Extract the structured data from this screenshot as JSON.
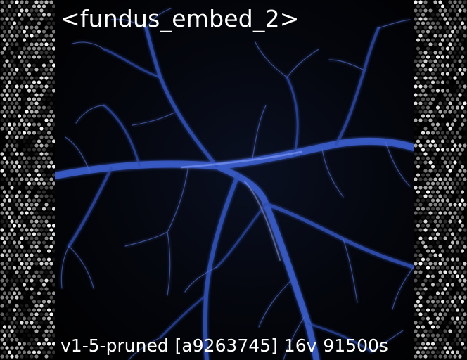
{
  "image": {
    "title": "<fundus_embed_2>",
    "caption": "v1-5-pruned [a9263745]  16v 91500s"
  },
  "colors": {
    "background": "#000000",
    "vessel": "#3a5cc8",
    "vessel_highlight": "#8ea6ff",
    "text": "#ffffff"
  }
}
